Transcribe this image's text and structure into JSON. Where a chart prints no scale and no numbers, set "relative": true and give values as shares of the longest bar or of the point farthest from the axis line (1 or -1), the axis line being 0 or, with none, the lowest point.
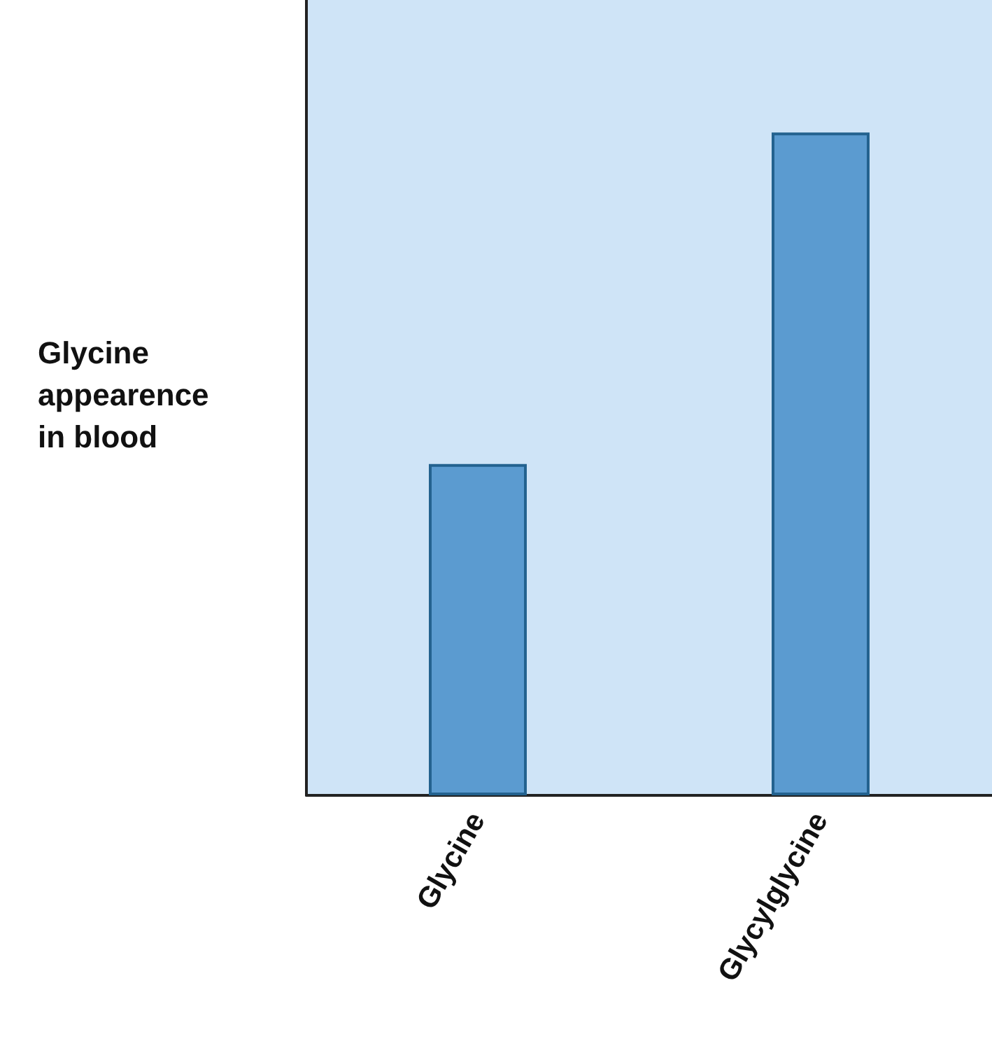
{
  "chart_data": {
    "type": "bar",
    "ylabel": "Glycine\nappearence\nin blood",
    "categories": [
      "Glycine",
      "Glycylglycine"
    ],
    "values": [
      0.5,
      1
    ],
    "color": "#5b9bd0",
    "relative": true,
    "grid": false
  }
}
